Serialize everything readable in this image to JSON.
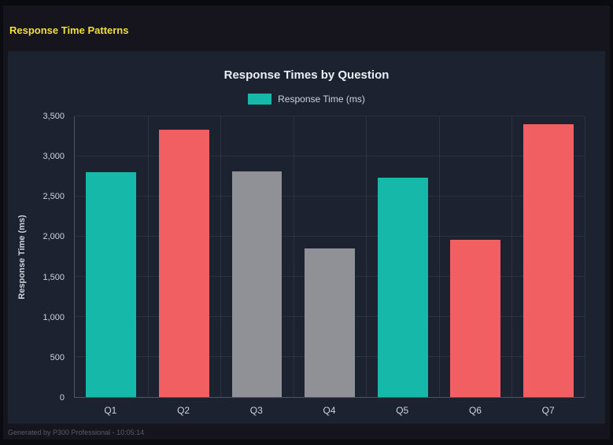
{
  "page": {
    "title": "Response Time Patterns",
    "footer": "Generated by P300 Professional - 10:05:14"
  },
  "chart_data": {
    "type": "bar",
    "title": "Response Times by Question",
    "categories": [
      "Q1",
      "Q2",
      "Q3",
      "Q4",
      "Q5",
      "Q6",
      "Q7"
    ],
    "values": [
      2800,
      3330,
      2810,
      1850,
      2740,
      1960,
      3400
    ],
    "bar_colors": [
      "#16b8aa",
      "#f25f63",
      "#8f9197",
      "#8f9197",
      "#16b8aa",
      "#f25f63",
      "#f25f63"
    ],
    "xlabel": "",
    "ylabel": "Response Time (ms)",
    "ylim": [
      0,
      3500
    ],
    "ytick_step": 500,
    "grid": true,
    "legend": [
      "Response Time (ms)"
    ],
    "legend_position": "top"
  },
  "colors": {
    "accent_title": "#f0df3a",
    "teal": "#16b8aa",
    "red": "#f25f63",
    "gray": "#8f9197",
    "page_bg": "#16151d",
    "panel_bg": "#1d2231",
    "grid_line": "rgba(255,255,255,0.07)",
    "axis_line": "#4d5563",
    "text_bright": "#eaeef4",
    "text_main": "#ced2da",
    "footer_text": "#565b66"
  }
}
